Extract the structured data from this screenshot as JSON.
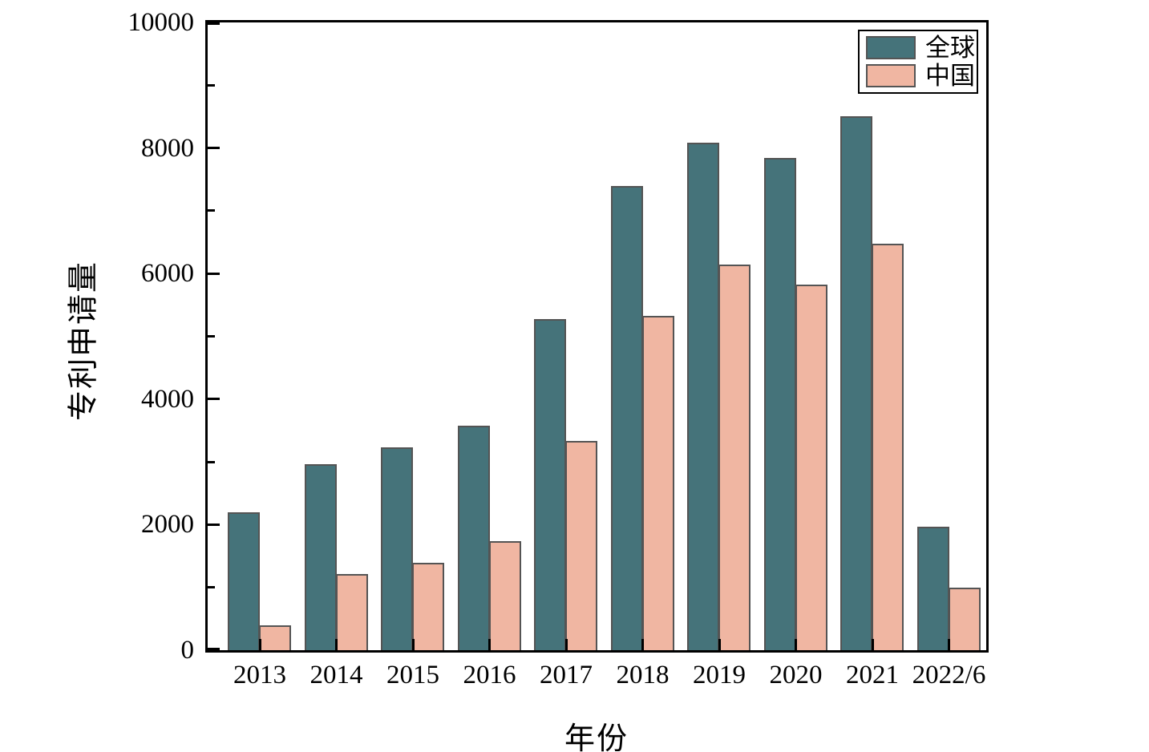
{
  "chart_data": {
    "type": "bar",
    "title": "",
    "xlabel": "年份",
    "ylabel": "专利申请量",
    "categories": [
      "2013",
      "2014",
      "2015",
      "2016",
      "2017",
      "2018",
      "2019",
      "2020",
      "2021",
      "2022/6"
    ],
    "series": [
      {
        "key": "global",
        "name": "全球",
        "color": "#45737a",
        "values": [
          2200,
          2960,
          3230,
          3580,
          5280,
          7400,
          8080,
          7840,
          8500,
          1970
        ]
      },
      {
        "key": "china",
        "name": "中国",
        "color": "#f0b6a2",
        "values": [
          390,
          1210,
          1390,
          1740,
          3330,
          5320,
          6140,
          5820,
          6480,
          1000
        ]
      }
    ],
    "ylim": [
      0,
      10000
    ],
    "yticks": [
      0,
      2000,
      4000,
      6000,
      8000,
      10000
    ],
    "minor_ytick_step": 1000,
    "grid": false,
    "legend_position": "top-right",
    "colors": {
      "axis": "#000000",
      "bar_edge": "#545454",
      "background": "#ffffff"
    }
  }
}
